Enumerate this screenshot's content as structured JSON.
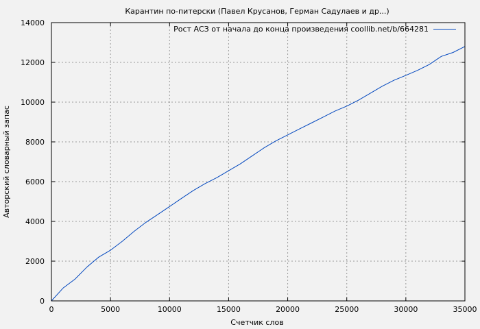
{
  "chart_data": {
    "type": "line",
    "title": "Карантин по-питерски (Павел Крусанов, Герман Садулаев и др...)",
    "xlabel": "Счетчик слов",
    "ylabel": "Авторский словарный запас",
    "xlim": [
      0,
      35000
    ],
    "ylim": [
      0,
      14000
    ],
    "xticks": [
      0,
      5000,
      10000,
      15000,
      20000,
      25000,
      30000,
      35000
    ],
    "yticks": [
      0,
      2000,
      4000,
      6000,
      8000,
      10000,
      12000,
      14000
    ],
    "grid": true,
    "legend_position": "top-right",
    "series": [
      {
        "name": "Рост АСЗ от начала до конца произведения coollib.net/b/664281",
        "color": "#0046be",
        "x": [
          0,
          1000,
          2000,
          3000,
          4000,
          5000,
          6000,
          7000,
          8000,
          9000,
          10000,
          11000,
          12000,
          13000,
          14000,
          15000,
          16000,
          17000,
          18000,
          19000,
          20000,
          21000,
          22000,
          23000,
          24000,
          25000,
          26000,
          27000,
          28000,
          29000,
          30000,
          31000,
          32000,
          33000,
          34000,
          35000
        ],
        "y": [
          0,
          650,
          1100,
          1700,
          2200,
          2550,
          3000,
          3500,
          3950,
          4350,
          4750,
          5150,
          5550,
          5900,
          6200,
          6550,
          6900,
          7300,
          7700,
          8050,
          8350,
          8650,
          8950,
          9250,
          9550,
          9800,
          10100,
          10450,
          10800,
          11100,
          11350,
          11600,
          11900,
          12300,
          12500,
          12800
        ]
      }
    ]
  }
}
